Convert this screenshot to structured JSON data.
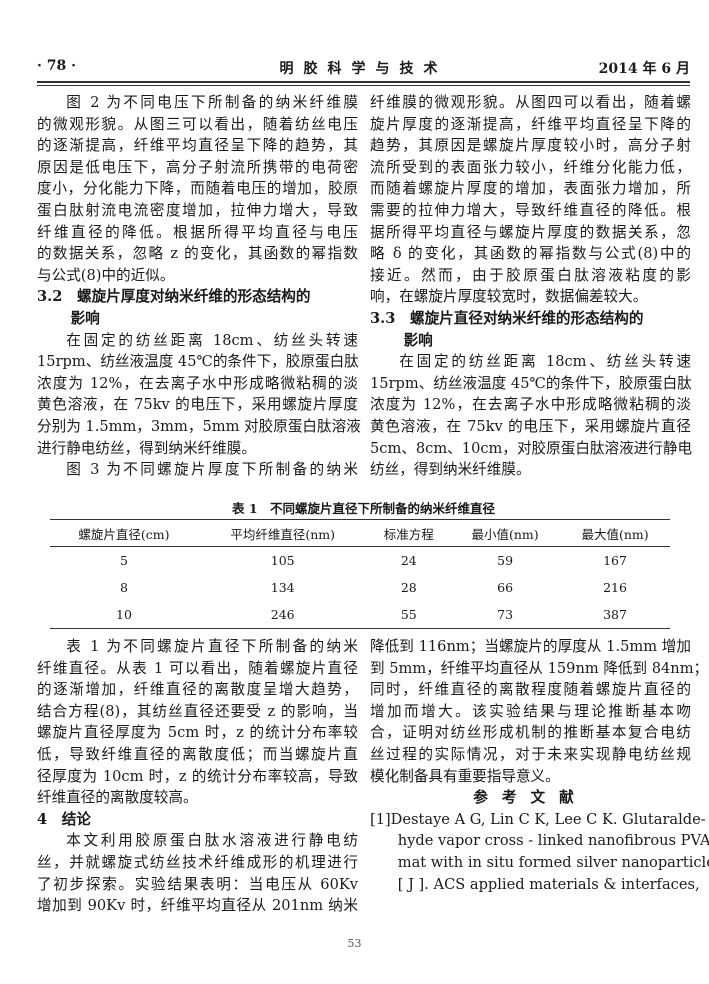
{
  "header": {
    "page_number": "· 78 ·",
    "journal": "明胶科学与技术",
    "date": "2014 年 6 月"
  },
  "top_left": [
    {
      "t": "ind",
      "s": "图 2 为不同电压下所制备的纳米纤维膜"
    },
    {
      "t": "",
      "s": "的微观形貌。从图三可以看出，随着纺丝电压"
    },
    {
      "t": "",
      "s": "的逐渐提高，纤维平均直径呈下降的趋势，其"
    },
    {
      "t": "",
      "s": "原因是低电压下，高分子射流所携带的电荷密"
    },
    {
      "t": "",
      "s": "度小，分化能力下降，而随着电压的增加，胶原"
    },
    {
      "t": "",
      "s": "蛋白肽射流电流密度增加，拉伸力增大，导致"
    },
    {
      "t": "",
      "s": "纤维直径的降低。根据所得平均直径与电压"
    },
    {
      "t": "",
      "s": "的数据关系，忽略 z 的变化，其函数的幂指数"
    },
    {
      "t": "last",
      "s": "与公式(8)中的近似。"
    },
    {
      "t": "h",
      "s": "3.2　螺旋片厚度对纳米纤维的形态结构的"
    },
    {
      "t": "h2",
      "s": "影响"
    },
    {
      "t": "ind",
      "s": "在固定的纺丝距离 18cm、纺丝头转速"
    },
    {
      "t": "",
      "s": "15rpm、纺丝液温度 45℃的条件下，胶原蛋白肽"
    },
    {
      "t": "",
      "s": "浓度为 12%，在去离子水中形成略微粘稠的淡"
    },
    {
      "t": "",
      "s": "黄色溶液，在 75kv 的电压下，采用螺旋片厚度"
    },
    {
      "t": "",
      "s": "分别为 1.5mm，3mm，5mm 对胶原蛋白肽溶液"
    },
    {
      "t": "last",
      "s": "进行静电纺丝，得到纳米纤维膜。"
    },
    {
      "t": "ind",
      "s": "图 3 为不同螺旋片厚度下所制备的纳米"
    }
  ],
  "top_right": [
    {
      "t": "",
      "s": "纤维膜的微观形貌。从图四可以看出，随着螺"
    },
    {
      "t": "",
      "s": "旋片厚度的逐渐提高，纤维平均直径呈下降的"
    },
    {
      "t": "",
      "s": "趋势，其原因是螺旋片厚度较小时，高分子射"
    },
    {
      "t": "",
      "s": "流所受到的表面张力较小，纤维分化能力低，"
    },
    {
      "t": "",
      "s": "而随着螺旋片厚度的增加，表面张力增加，所"
    },
    {
      "t": "",
      "s": "需要的拉伸力增大，导致纤维直径的降低。根"
    },
    {
      "t": "",
      "s": "据所得平均直径与螺旋片厚度的数据关系，忽"
    },
    {
      "t": "",
      "s": "略 δ 的变化，其函数的幂指数与公式(8)中的"
    },
    {
      "t": "",
      "s": "接近。然而，由于胶原蛋白肽溶液粘度的影"
    },
    {
      "t": "last",
      "s": "响，在螺旋片厚度较宽时，数据偏差较大。"
    },
    {
      "t": "h",
      "s": "3.3　螺旋片直径对纳米纤维的形态结构的"
    },
    {
      "t": "h2",
      "s": "影响"
    },
    {
      "t": "ind",
      "s": "在固定的纺丝距离 18cm、纺丝头转速"
    },
    {
      "t": "",
      "s": "15rpm、纺丝液温度 45℃的条件下，胶原蛋白肽"
    },
    {
      "t": "",
      "s": "浓度为 12%，在去离子水中形成略微粘稠的淡"
    },
    {
      "t": "",
      "s": "黄色溶液，在 75kv 的电压下，采用螺旋片直径"
    },
    {
      "t": "",
      "s": "5cm、8cm、10cm，对胶原蛋白肽溶液进行静电"
    },
    {
      "t": "last",
      "s": "纺丝，得到纳米纤维膜。"
    }
  ],
  "table": {
    "title": "表 1　不同螺旋片直径下所制备的纳米纤维直径",
    "headers": [
      "螺旋片直径(cm)",
      "平均纤维直径(nm)",
      "标准方程",
      "最小值(nm)",
      "最大值(nm)"
    ],
    "rows": [
      [
        "5",
        "105",
        "24",
        "59",
        "167"
      ],
      [
        "8",
        "134",
        "28",
        "66",
        "216"
      ],
      [
        "10",
        "246",
        "55",
        "73",
        "387"
      ]
    ]
  },
  "bottom_left": [
    {
      "t": "ind",
      "s": "表 1 为不同螺旋片直径下所制备的纳米"
    },
    {
      "t": "",
      "s": "纤维直径。从表 1 可以看出，随着螺旋片直径"
    },
    {
      "t": "",
      "s": "的逐渐增加，纤维直径的离散度呈增大趋势，"
    },
    {
      "t": "",
      "s": "结合方程(8)，其纺丝直径还要受 z 的影响，当"
    },
    {
      "t": "",
      "s": "螺旋片直径厚度为 5cm 时，z 的统计分布率较"
    },
    {
      "t": "",
      "s": "低，导致纤维直径的离散度低；而当螺旋片直"
    },
    {
      "t": "",
      "s": "径厚度为 10cm 时，z 的统计分布率较高，导致"
    },
    {
      "t": "last",
      "s": "纤维直径的离散度较高。"
    },
    {
      "t": "h",
      "s": "4　结论"
    },
    {
      "t": "ind",
      "s": "本文利用胶原蛋白肽水溶液进行静电纺"
    },
    {
      "t": "",
      "s": "丝，并就螺旋式纺丝技术纤维成形的机理进行"
    },
    {
      "t": "",
      "s": "了初步探索。实验结果表明：当电压从 60Kv"
    },
    {
      "t": "",
      "s": "增加到 90Kv 时，纤维平均直径从 201nm 纳米"
    }
  ],
  "bottom_right": [
    {
      "t": "",
      "s": "降低到 116nm；当螺旋片的厚度从 1.5mm 增加"
    },
    {
      "t": "",
      "s": "到 5mm，纤维平均直径从 159nm 降低到 84nm；"
    },
    {
      "t": "",
      "s": "同时，纤维直径的离散程度随着螺旋片直径的"
    },
    {
      "t": "",
      "s": "增加而增大。该实验结果与理论推断基本吻"
    },
    {
      "t": "",
      "s": "合，证明对纺丝形成机制的推断基本复合电纺"
    },
    {
      "t": "",
      "s": "丝过程的实际情况，对于未来实现静电纺丝规"
    },
    {
      "t": "last",
      "s": "模化制备具有重要指导意义。"
    },
    {
      "t": "ctr",
      "s": "参考文献"
    },
    {
      "t": "",
      "s": "[1]Destaye A G, Lin C K, Lee C K. Glutaralde-"
    },
    {
      "t": "ref2",
      "s": "hyde vapor cross - linked nanofibrous PVA"
    },
    {
      "t": "ref2",
      "s": "mat with in situ formed silver nanoparticles"
    },
    {
      "t": "ref2",
      "s": "[ J ]. ACS applied materials & interfaces,"
    }
  ],
  "footer": {
    "page": "53"
  }
}
